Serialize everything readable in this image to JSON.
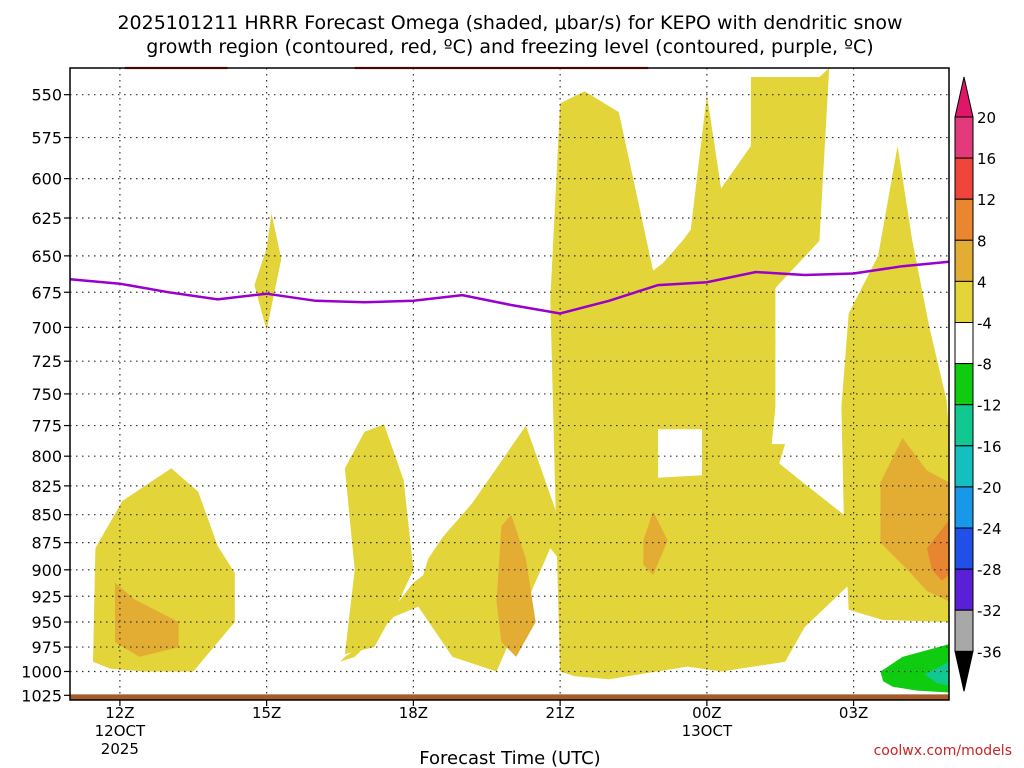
{
  "chart_data": {
    "type": "heatmap",
    "title_line1": "2025101211 HRRR Forecast Omega (shaded, μbar/s) for KEPO with dendritic snow",
    "title_line2": "growth region (contoured, red, ºC) and freezing level (contoured, purple, ºC)",
    "xlabel": "Forecast Time (UTC)",
    "ylabel": "",
    "credit": "coolwx.com/models",
    "y_axis": {
      "scale": "pressure",
      "ticks": [
        550,
        575,
        600,
        625,
        650,
        675,
        700,
        725,
        750,
        775,
        800,
        825,
        850,
        875,
        900,
        925,
        950,
        975,
        1000,
        1025
      ],
      "range_top": 535,
      "range_bottom": 1030
    },
    "x_axis": {
      "range_hours": [
        10.98,
        28.95
      ],
      "ticks": [
        {
          "hour": 12,
          "label": "12Z",
          "sub1": "12OCT",
          "sub2": "2025"
        },
        {
          "hour": 15,
          "label": "15Z",
          "sub1": "",
          "sub2": ""
        },
        {
          "hour": 18,
          "label": "18Z",
          "sub1": "",
          "sub2": ""
        },
        {
          "hour": 21,
          "label": "21Z",
          "sub1": "",
          "sub2": ""
        },
        {
          "hour": 24,
          "label": "00Z",
          "sub1": "13OCT",
          "sub2": ""
        },
        {
          "hour": 27,
          "label": "03Z",
          "sub1": "",
          "sub2": ""
        }
      ]
    },
    "grid": true,
    "freezing_level": {
      "name": "freezing level",
      "color": "#9900cc",
      "points": [
        [
          10.98,
          666
        ],
        [
          12,
          669
        ],
        [
          13,
          675
        ],
        [
          14,
          680
        ],
        [
          15,
          676
        ],
        [
          16,
          681
        ],
        [
          17,
          682
        ],
        [
          18,
          681
        ],
        [
          19,
          677
        ],
        [
          20,
          684
        ],
        [
          21,
          690
        ],
        [
          22,
          681
        ],
        [
          23,
          670
        ],
        [
          24,
          668
        ],
        [
          25,
          661
        ],
        [
          26,
          663
        ],
        [
          27,
          662
        ],
        [
          28,
          657
        ],
        [
          28.95,
          654
        ]
      ]
    },
    "dendritic_contours": {
      "name": "dendritic snow growth region",
      "color": "#ee3322",
      "lines": [
        [
          [
            12.1,
            530
          ],
          [
            13.3,
            530
          ],
          [
            14.2,
            529
          ]
        ],
        [
          [
            16.8,
            529
          ],
          [
            17.5,
            530
          ],
          [
            18.8,
            531
          ],
          [
            20,
            532
          ],
          [
            21.1,
            532
          ],
          [
            22,
            529
          ],
          [
            22.8,
            526
          ]
        ]
      ]
    },
    "omega_regions": [
      {
        "level": "4 to 8",
        "color": "#e3d43a",
        "points": [
          [
            11.45,
            990
          ],
          [
            11.5,
            880
          ],
          [
            12.05,
            838
          ],
          [
            13.05,
            810
          ],
          [
            13.6,
            830
          ],
          [
            14.0,
            878
          ],
          [
            14.35,
            903
          ],
          [
            14.35,
            950
          ],
          [
            13.5,
            1000
          ],
          [
            12.5,
            1000
          ],
          [
            11.8,
            997
          ]
        ]
      },
      {
        "level": "8 to 12",
        "color": "#e3ad33",
        "points": [
          [
            11.9,
            912
          ],
          [
            12.3,
            928
          ],
          [
            13.2,
            950
          ],
          [
            13.2,
            975
          ],
          [
            12.4,
            985
          ],
          [
            11.9,
            970
          ]
        ]
      },
      {
        "level": "4 to 8",
        "color": "#e3d43a",
        "points": [
          [
            15.0,
            645
          ],
          [
            15.1,
            622
          ],
          [
            15.3,
            652
          ],
          [
            15.0,
            702
          ],
          [
            14.75,
            670
          ]
        ]
      },
      {
        "level": "4 to 8",
        "color": "#e3d43a",
        "points": [
          [
            16.5,
            990
          ],
          [
            16.8,
            985
          ],
          [
            17.2,
            965
          ],
          [
            17.7,
            930
          ],
          [
            18,
            912
          ],
          [
            18.2,
            905
          ],
          [
            18.3,
            890
          ],
          [
            18.6,
            870
          ],
          [
            19.2,
            840
          ],
          [
            19.7,
            810
          ],
          [
            20.3,
            775
          ],
          [
            20.9,
            845
          ],
          [
            21.2,
            930
          ],
          [
            22.2,
            990
          ],
          [
            23.2,
            995
          ],
          [
            22.5,
            965
          ],
          [
            21.5,
            920
          ],
          [
            20.8,
            880
          ],
          [
            19.7,
            1000
          ],
          [
            18.8,
            985
          ],
          [
            18.1,
            935
          ],
          [
            17.6,
            945
          ],
          [
            17.2,
            965
          ],
          [
            16.6,
            985
          ]
        ]
      },
      {
        "level": "4 to 8",
        "color": "#e3d43a",
        "points": [
          [
            16.6,
            982
          ],
          [
            16.8,
            900
          ],
          [
            16.6,
            810
          ],
          [
            17.0,
            780
          ],
          [
            17.4,
            774
          ],
          [
            17.8,
            820
          ],
          [
            18.0,
            900
          ],
          [
            17.6,
            940
          ],
          [
            17.2,
            975
          ]
        ]
      },
      {
        "level": "4 to 8",
        "color": "#e3d43a",
        "points": [
          [
            21,
            1000
          ],
          [
            20.9,
            830
          ],
          [
            20.8,
            680
          ],
          [
            21,
            555
          ],
          [
            21.5,
            548
          ],
          [
            22.2,
            560
          ],
          [
            22.9,
            660
          ],
          [
            23.1,
            655
          ],
          [
            23.5,
            640
          ],
          [
            24.2,
            610
          ],
          [
            24.9,
            580
          ],
          [
            24.9,
            540
          ],
          [
            26.3,
            540
          ],
          [
            26.5,
            520
          ],
          [
            26.3,
            640
          ],
          [
            25.4,
            672
          ],
          [
            25.4,
            760
          ],
          [
            25.3,
            800
          ],
          [
            25.9,
            820
          ],
          [
            26.8,
            850
          ],
          [
            27.0,
            910
          ],
          [
            26.0,
            955
          ],
          [
            25.6,
            990
          ],
          [
            24.3,
            1000
          ],
          [
            23.6,
            995
          ],
          [
            22.0,
            1008
          ],
          [
            21.3,
            1005
          ]
        ]
      },
      {
        "level": "4 to 8",
        "color": "#e3d43a",
        "points": [
          [
            26.9,
            690
          ],
          [
            27.5,
            650
          ],
          [
            27.9,
            580
          ],
          [
            28.2,
            640
          ],
          [
            28.55,
            700
          ],
          [
            28.9,
            755
          ],
          [
            28.95,
            780
          ],
          [
            28.95,
            950
          ],
          [
            27.6,
            948
          ],
          [
            26.9,
            938
          ],
          [
            26.8,
            850
          ],
          [
            26.75,
            760
          ]
        ]
      },
      {
        "level": "4 to 8",
        "color": "#e3d43a",
        "points": [
          [
            24,
            550
          ],
          [
            24.5,
            650
          ],
          [
            25.2,
            690
          ],
          [
            25.4,
            710
          ],
          [
            25.3,
            790
          ],
          [
            25.6,
            790
          ],
          [
            25.3,
            830
          ],
          [
            24.9,
            845
          ],
          [
            24.4,
            800
          ],
          [
            24.0,
            798
          ],
          [
            23.5,
            820
          ],
          [
            23.4,
            860
          ],
          [
            22.5,
            830
          ],
          [
            22.6,
            740
          ],
          [
            22.9,
            690
          ],
          [
            23.5,
            680
          ]
        ]
      },
      {
        "level": "8 to 12",
        "color": "#e3ad33",
        "points": [
          [
            19.7,
            930
          ],
          [
            19.8,
            860
          ],
          [
            20.0,
            850
          ],
          [
            20.3,
            890
          ],
          [
            20.5,
            950
          ],
          [
            20.1,
            985
          ],
          [
            19.8,
            970
          ]
        ]
      },
      {
        "level": "8 to 12",
        "color": "#e3ad33",
        "points": [
          [
            22.7,
            873
          ],
          [
            22.9,
            847
          ],
          [
            23.2,
            873
          ],
          [
            22.9,
            905
          ],
          [
            22.7,
            895
          ]
        ]
      },
      {
        "level": "8 to 12",
        "color": "#e3ad33",
        "points": [
          [
            27.55,
            822
          ],
          [
            28.0,
            785
          ],
          [
            28.5,
            812
          ],
          [
            28.95,
            822
          ],
          [
            28.95,
            930
          ],
          [
            28.5,
            920
          ],
          [
            28.1,
            900
          ],
          [
            27.55,
            875
          ]
        ]
      },
      {
        "level": "12 to 16",
        "color": "#e78530",
        "points": [
          [
            28.5,
            880
          ],
          [
            28.95,
            855
          ],
          [
            28.95,
            905
          ],
          [
            28.8,
            910
          ],
          [
            28.6,
            900
          ]
        ]
      },
      {
        "level": "-8 to -4",
        "color": "#10cc10",
        "points": [
          [
            27.55,
            1000
          ],
          [
            28.0,
            985
          ],
          [
            28.95,
            972
          ],
          [
            28.95,
            1022
          ],
          [
            28.3,
            1020
          ],
          [
            27.8,
            1016
          ],
          [
            27.6,
            1010
          ]
        ]
      },
      {
        "level": "-12 to -8",
        "color": "#10c890",
        "points": [
          [
            28.45,
            1003
          ],
          [
            28.95,
            990
          ],
          [
            28.95,
            1015
          ],
          [
            28.7,
            1012
          ]
        ]
      },
      {
        "level": "white",
        "color": "#ffffff",
        "points": [
          [
            23.9,
            778
          ],
          [
            23.9,
            816
          ],
          [
            23.0,
            818
          ],
          [
            23.0,
            778
          ]
        ]
      }
    ],
    "ground": {
      "color": "#a65c2a",
      "pressure_top": 1024
    },
    "colorbar": {
      "levels": [
        {
          "label": "20",
          "color": "#e23a7a"
        },
        {
          "label": "16",
          "color": "#f0453a"
        },
        {
          "label": "12",
          "color": "#ea862f"
        },
        {
          "label": "8",
          "color": "#e3ad33"
        },
        {
          "label": "4",
          "color": "#e3d43a"
        },
        {
          "label": "-4",
          "color": "#ffffff"
        },
        {
          "label": "-8",
          "color": "#10cc10"
        },
        {
          "label": "-12",
          "color": "#10c890"
        },
        {
          "label": "-16",
          "color": "#14bfbf"
        },
        {
          "label": "-20",
          "color": "#1898e8"
        },
        {
          "label": "-24",
          "color": "#2050e8"
        },
        {
          "label": "-28",
          "color": "#5a20d8"
        },
        {
          "label": "-32",
          "color": "#8e10c8"
        },
        {
          "label": "-36",
          "color": "#a8a8a8"
        }
      ],
      "top_tip_color": "#e0166a",
      "bottom_tip_color": "#000000"
    }
  }
}
